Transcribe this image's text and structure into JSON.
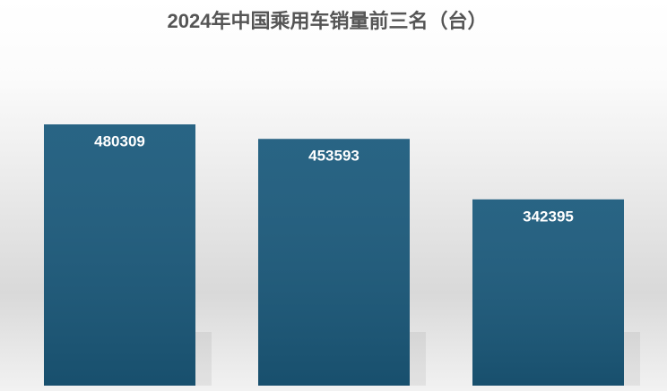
{
  "chart_data": {
    "type": "bar",
    "title": "2024年中国乘用车销量前三名（台）",
    "categories": [
      null,
      null,
      null
    ],
    "values": [
      480309,
      453593,
      342395
    ],
    "color": "#1b5a7c"
  }
}
